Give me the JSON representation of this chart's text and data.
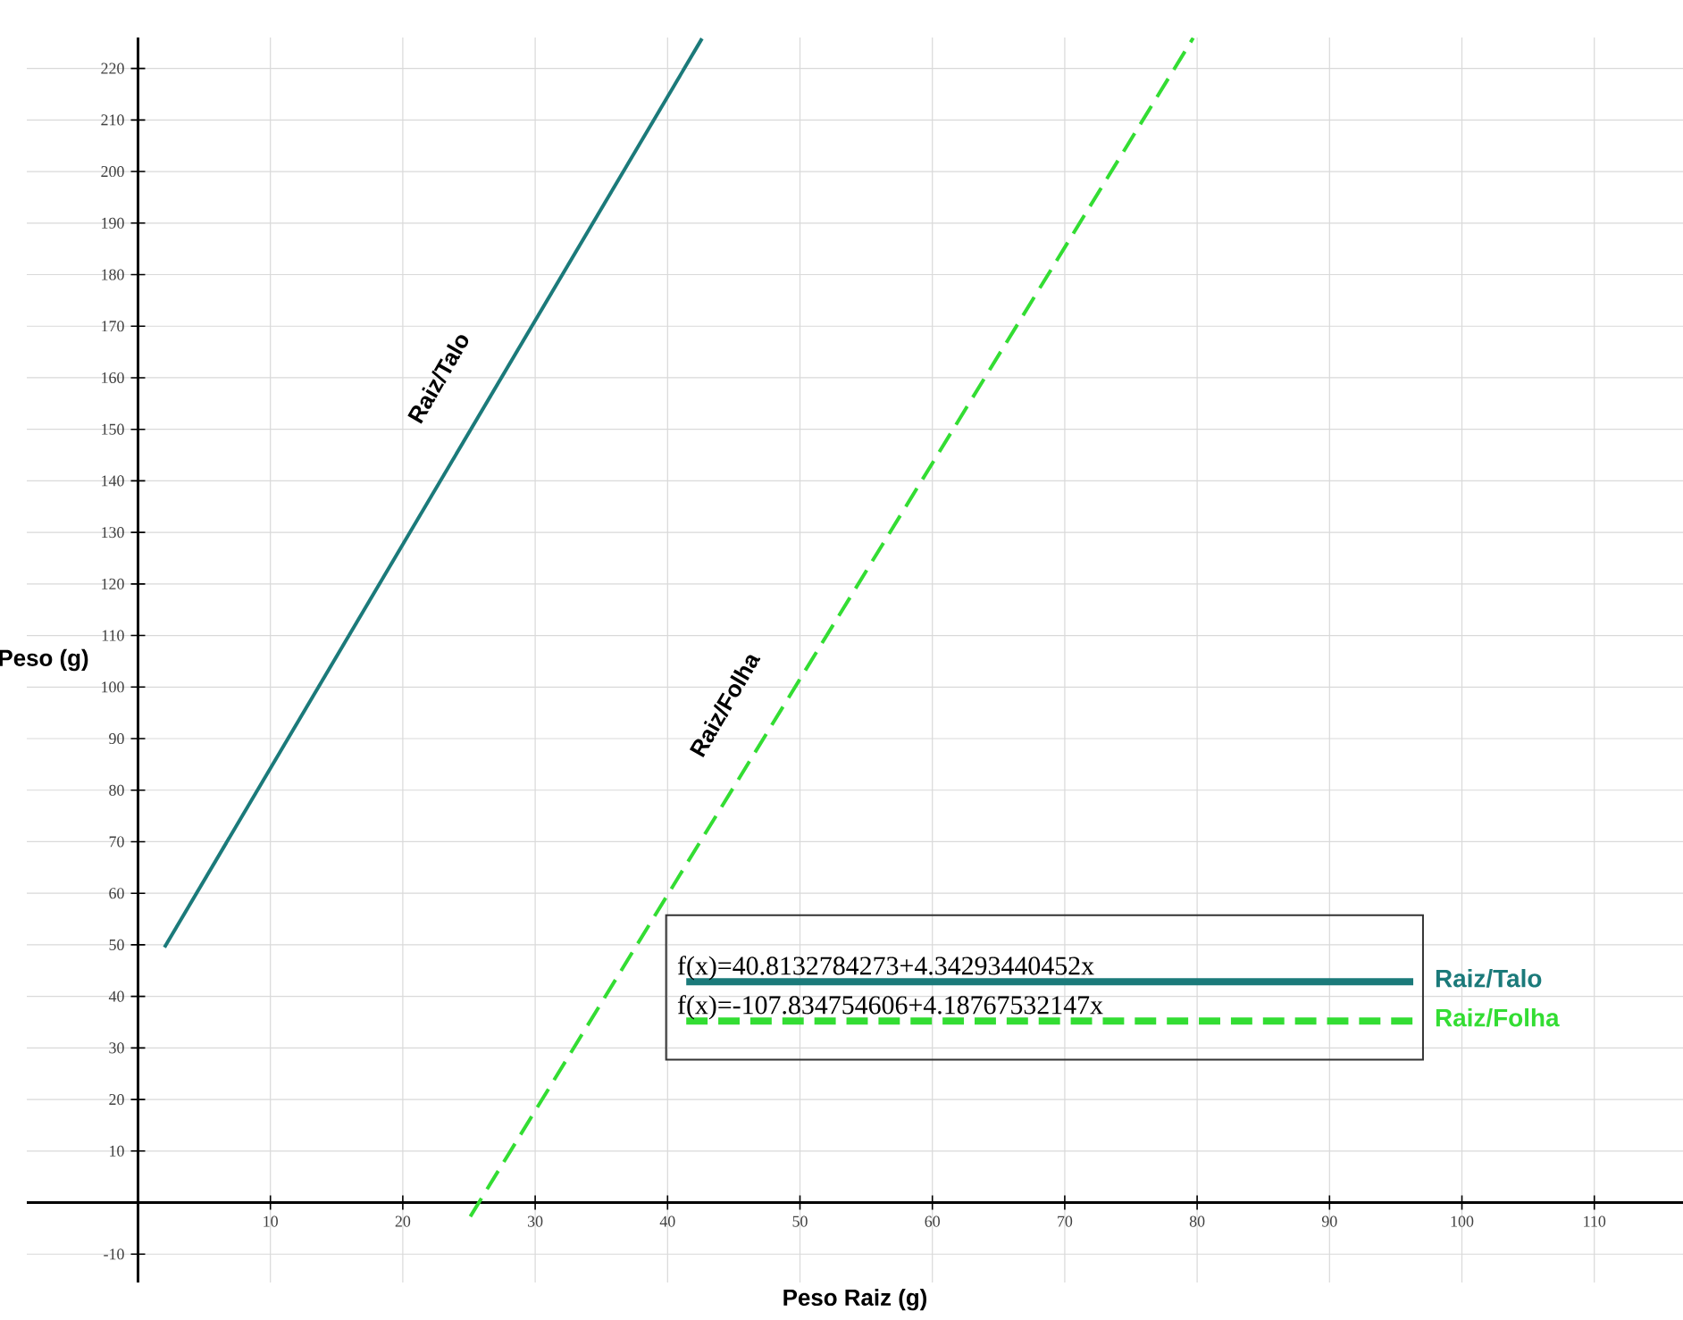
{
  "chart_data": {
    "type": "line",
    "xlabel": "Peso Raiz (g)",
    "ylabel": "Peso (g)",
    "xlim": [
      -8.4,
      116.7
    ],
    "ylim": [
      -15.5,
      226
    ],
    "xticks": [
      10,
      20,
      30,
      40,
      50,
      60,
      70,
      80,
      90,
      100,
      110
    ],
    "yticks": [
      -10,
      10,
      20,
      30,
      40,
      50,
      60,
      70,
      80,
      90,
      100,
      110,
      120,
      130,
      140,
      150,
      160,
      170,
      180,
      190,
      200,
      210,
      220
    ],
    "grid": true,
    "legend": "bottom right",
    "series": [
      {
        "name": "Raiz/Talo",
        "color": "#1b7a7a",
        "x": [
          2,
          42.6
        ],
        "values": [
          49.5,
          225.8
        ],
        "line_style": "solid"
      },
      {
        "name": "Raiz/Folha",
        "color": "#33dd33",
        "x": [
          25.1,
          79.7
        ],
        "values": [
          -2.7,
          225.9
        ],
        "line_style": "dashed"
      }
    ],
    "annotations": [
      "f(x)=40.8132784273+4.34293440452x",
      "f(x)=-107.834754606+4.18767532147x",
      "Raiz/Talo",
      "Raiz/Folha"
    ]
  }
}
